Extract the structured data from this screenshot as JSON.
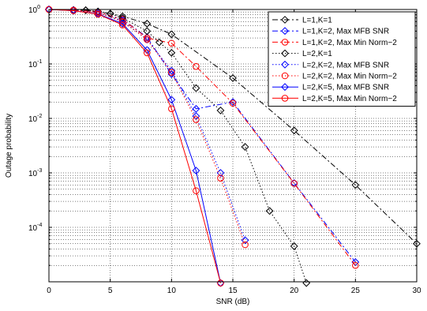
{
  "chart_data": {
    "type": "line",
    "title": "",
    "xlabel": "SNR (dB)",
    "ylabel": "Outage probability",
    "xlim": [
      0,
      30
    ],
    "ylim_exp": [
      -5,
      0
    ],
    "yscale": "log",
    "grid": true,
    "legend_placement": "top-right",
    "x_ticks": [
      0,
      5,
      10,
      15,
      20,
      25,
      30
    ],
    "y_ticks": [
      {
        "value": 1,
        "base": "10",
        "exp": "0"
      },
      {
        "value": 0.1,
        "base": "10",
        "exp": "-1"
      },
      {
        "value": 0.01,
        "base": "10",
        "exp": "-2"
      },
      {
        "value": 0.001,
        "base": "10",
        "exp": "-3"
      },
      {
        "value": 0.0001,
        "base": "10",
        "exp": "-4"
      }
    ],
    "series": [
      {
        "name": "L=1,K=1",
        "color": "#000000",
        "dash": "7,3,2,3",
        "marker": "diamond",
        "x": [
          0,
          2,
          3,
          4,
          5,
          6,
          8,
          10,
          15,
          20,
          25,
          30
        ],
        "y": [
          1,
          0.98,
          0.97,
          0.92,
          0.84,
          0.75,
          0.55,
          0.35,
          0.055,
          0.006,
          0.0006,
          5e-05
        ]
      },
      {
        "name": "L=1,K=2, Max MFB SNR",
        "color": "#0000ff",
        "dash": "7,3,2,3",
        "marker": "diamond",
        "x": [
          0,
          2,
          4,
          6,
          8,
          10,
          12,
          15,
          20,
          25
        ],
        "y": [
          1,
          0.97,
          0.9,
          0.66,
          0.31,
          0.065,
          0.015,
          0.02,
          0.00065,
          2.3e-05
        ]
      },
      {
        "name": "L=1,K=2, Max Min Norm−2",
        "color": "#ff0000",
        "dash": "7,3,2,3",
        "marker": "circle",
        "x": [
          0,
          2,
          4,
          6,
          8,
          10,
          12,
          15,
          20,
          25
        ],
        "y": [
          1,
          0.97,
          0.9,
          0.66,
          0.3,
          0.24,
          0.09,
          0.019,
          0.00064,
          2e-05
        ]
      },
      {
        "name": "L=2,K=1",
        "color": "#000000",
        "dash": "1.5,2.5",
        "marker": "diamond",
        "x": [
          0,
          2,
          3,
          4,
          5,
          6,
          8,
          9,
          10,
          12,
          14,
          16,
          18,
          20,
          21
        ],
        "y": [
          1,
          0.98,
          0.97,
          0.92,
          0.84,
          0.7,
          0.4,
          0.25,
          0.16,
          0.036,
          0.014,
          0.003,
          0.0002,
          4.5e-05,
          9.5e-06
        ]
      },
      {
        "name": "L=2,K=2, Max MFB SNR",
        "color": "#0000ff",
        "dash": "1.5,2.5",
        "marker": "diamond",
        "x": [
          0,
          2,
          4,
          6,
          8,
          10,
          12,
          14,
          16
        ],
        "y": [
          1,
          0.97,
          0.88,
          0.62,
          0.28,
          0.075,
          0.011,
          0.001,
          5.8e-05
        ]
      },
      {
        "name": "L=2,K=2, Max Min Norm−2",
        "color": "#ff0000",
        "dash": "1.5,2.5",
        "marker": "circle",
        "x": [
          0,
          2,
          4,
          6,
          8,
          10,
          12,
          14,
          16
        ],
        "y": [
          1,
          0.97,
          0.88,
          0.6,
          0.28,
          0.07,
          0.0095,
          0.0008,
          4.8e-05
        ]
      },
      {
        "name": "L=2,K=5, Max MFB SNR",
        "color": "#0000ff",
        "dash": "",
        "marker": "diamond",
        "x": [
          0,
          2,
          4,
          6,
          8,
          10,
          12,
          14
        ],
        "y": [
          1,
          0.95,
          0.83,
          0.55,
          0.18,
          0.022,
          0.0011,
          9.5e-06
        ]
      },
      {
        "name": "L=2,K=5, Max Min Norm−2",
        "color": "#ff0000",
        "dash": "",
        "marker": "circle",
        "x": [
          0,
          2,
          4,
          6,
          8,
          10,
          12,
          14
        ],
        "y": [
          1,
          0.95,
          0.82,
          0.52,
          0.16,
          0.015,
          0.00047,
          9.5e-06
        ]
      }
    ]
  }
}
